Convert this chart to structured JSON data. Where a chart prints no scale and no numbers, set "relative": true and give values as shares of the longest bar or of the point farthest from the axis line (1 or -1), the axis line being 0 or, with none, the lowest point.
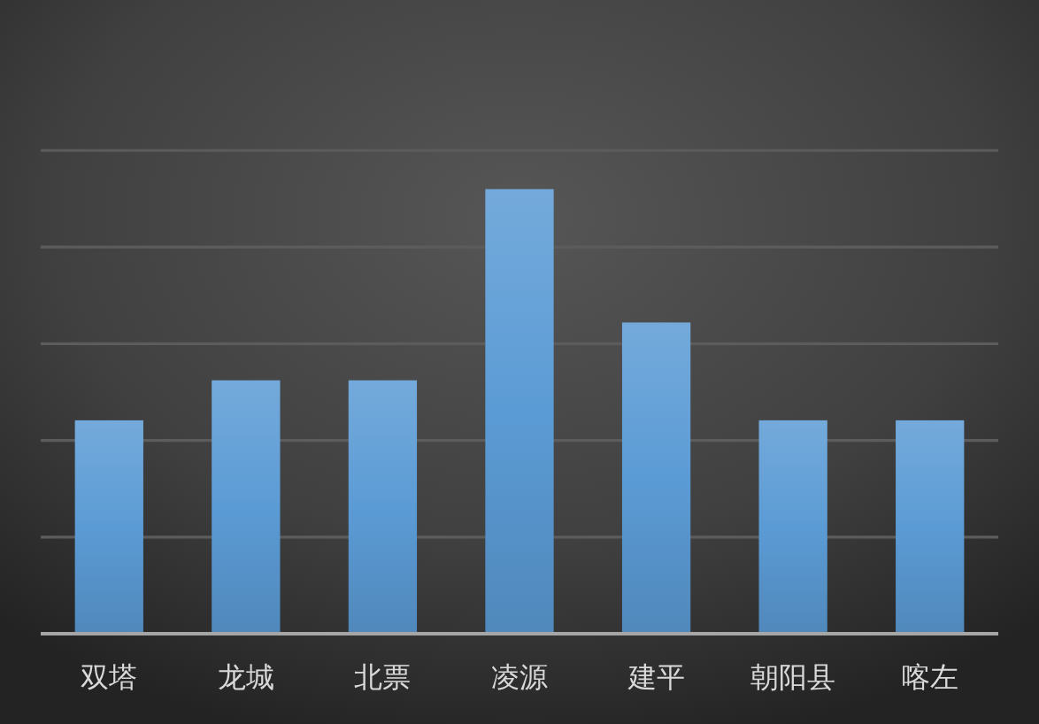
{
  "chart_data": {
    "type": "bar",
    "relative": true,
    "categories": [
      "双塔",
      "龙城",
      "北票",
      "凌源",
      "建平",
      "朝阳县",
      "喀左"
    ],
    "values": [
      0.48,
      0.57,
      0.57,
      1,
      0.7,
      0.48,
      0.48
    ],
    "color": "#5b9bd5",
    "grid": "y"
  }
}
